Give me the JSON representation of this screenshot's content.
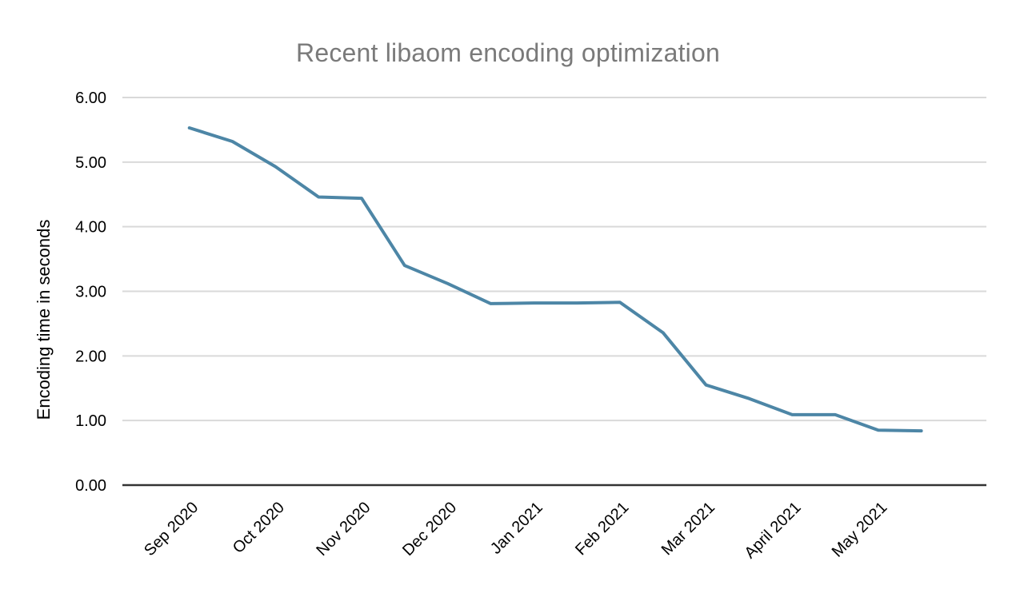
{
  "chart_data": {
    "type": "line",
    "title": "Recent libaom encoding optimization",
    "xlabel": "",
    "ylabel": "Encoding time in seconds",
    "categories": [
      "Sep 2020",
      "Oct 2020",
      "Nov 2020",
      "Dec 2020",
      "Jan 2021",
      "Feb 2021",
      "Mar 2021",
      "April 2021",
      "May 2021"
    ],
    "points_per_category": 2,
    "values": [
      5.53,
      5.32,
      4.93,
      4.46,
      4.44,
      3.4,
      3.12,
      2.81,
      2.82,
      2.82,
      2.83,
      2.36,
      1.55,
      1.34,
      1.09,
      1.09,
      0.85,
      0.84
    ],
    "ylim": [
      0,
      6
    ],
    "ytick_step": 1,
    "ytick_labels": [
      "0.00",
      "1.00",
      "2.00",
      "3.00",
      "4.00",
      "5.00",
      "6.00"
    ],
    "grid": "horizontal",
    "legend": "none",
    "x_label_rotation_deg": -45,
    "colors": {
      "line": "#4d86a6",
      "gridline": "#d9d9d9",
      "axis_line": "#333333",
      "title": "#7a7a7a",
      "tick_label": "#000000"
    }
  }
}
